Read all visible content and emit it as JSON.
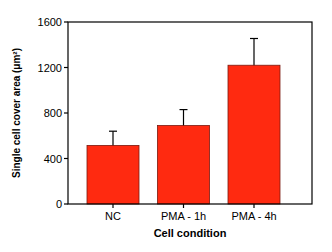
{
  "chart_data": {
    "type": "bar",
    "x_label": "Cell condition",
    "y_label": "Single cell cover area (μm²)",
    "categories": [
      "NC",
      "PMA - 1h",
      "PMA - 4h"
    ],
    "values": [
      515,
      690,
      1220
    ],
    "errors": [
      125,
      140,
      235
    ],
    "color": "#ff2a10",
    "ylim": [
      0,
      1600
    ],
    "yticks": [
      0,
      400,
      800,
      1200,
      1600
    ],
    "grid": false
  }
}
